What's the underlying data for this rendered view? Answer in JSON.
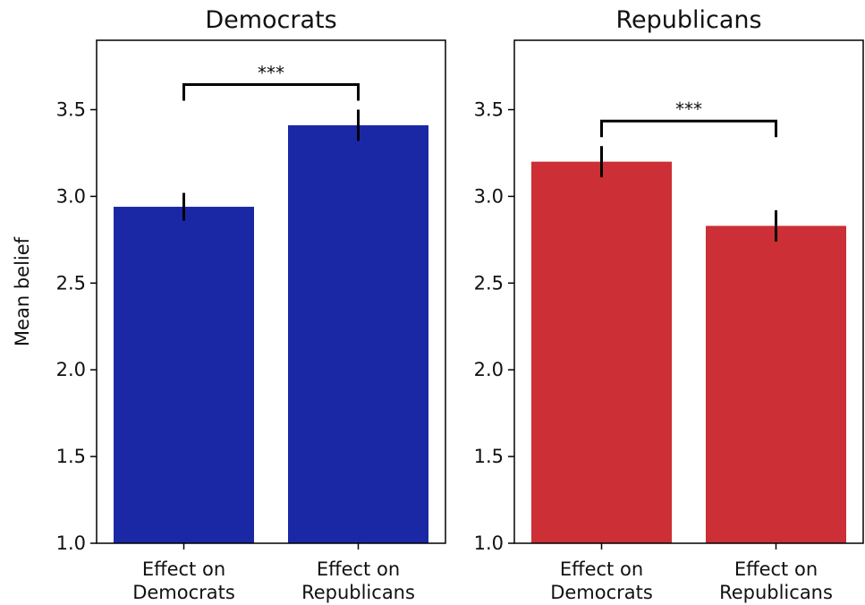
{
  "chart_data": [
    {
      "type": "bar",
      "title": "Democrats",
      "ylabel": "Mean belief",
      "ylim": [
        1.0,
        3.9
      ],
      "yticks": [
        "1.0",
        "1.5",
        "2.0",
        "2.5",
        "3.0",
        "3.5"
      ],
      "categories": [
        [
          "Effect on",
          "Democrats"
        ],
        [
          "Effect on",
          "Republicans"
        ]
      ],
      "values": [
        2.94,
        3.41
      ],
      "error": [
        0.08,
        0.09
      ],
      "bar_color": "#1b28a5",
      "significance": "***",
      "grid": false
    },
    {
      "type": "bar",
      "title": "Republicans",
      "ylabel": "",
      "ylim": [
        1.0,
        3.9
      ],
      "yticks": [
        "1.0",
        "1.5",
        "2.0",
        "2.5",
        "3.0",
        "3.5"
      ],
      "categories": [
        [
          "Effect on",
          "Democrats"
        ],
        [
          "Effect on",
          "Republicans"
        ]
      ],
      "values": [
        3.2,
        2.83
      ],
      "error": [
        0.09,
        0.09
      ],
      "bar_color": "#cc2f35",
      "significance": "***",
      "grid": false
    }
  ]
}
